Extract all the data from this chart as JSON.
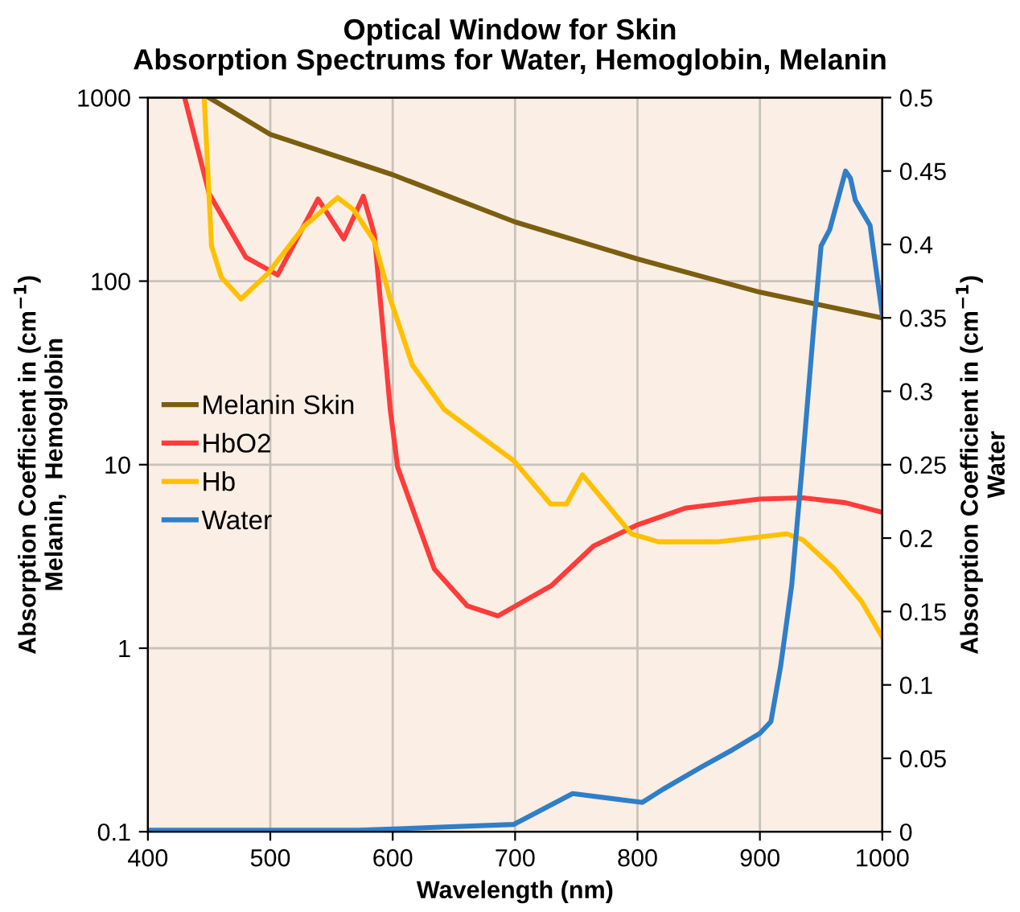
{
  "chart_data": {
    "type": "line",
    "title": "Optical Window for Skin",
    "subtitle": "Absorption Spectrums for Water, Hemoglobin, Melanin",
    "xlabel": "Wavelength (nm)",
    "ylabel": "Absorption Coefficient in (cm$^{−1}$)\nMelanin,  Hemoglobin",
    "y2label": "Absorption Coefficient in (cm$^{−1}$)\nWater",
    "log": "y",
    "grid": true,
    "legend": "center left",
    "xlim": [
      400,
      1000
    ],
    "xticks": [
      400,
      500,
      600,
      700,
      800,
      900,
      1000
    ],
    "ylim": [
      0.1,
      1000
    ],
    "yticks": [
      {
        "value": 0.1,
        "label": "0.1"
      },
      1,
      10,
      100,
      1000
    ],
    "y2lim": [
      0,
      0.5
    ],
    "y2ticks": [
      {
        "value": 0,
        "label": "0"
      },
      0.05,
      0.1,
      0.15,
      0.2,
      0.25,
      0.3,
      0.35,
      0.4,
      0.45,
      0.5
    ],
    "series": [
      {
        "name": "Melanin Skin",
        "color": "#7b5e10",
        "x": [
          450,
          500,
          600,
          700,
          800,
          900,
          1000
        ],
        "values": [
          1000,
          630,
          380,
          210,
          132,
          87,
          63
        ]
      },
      {
        "name": "HbO2",
        "color": "#ff3b3b",
        "x": [
          430,
          450,
          480,
          506,
          539,
          560,
          576,
          585,
          598,
          604,
          634,
          661,
          686,
          730,
          764,
          800,
          839,
          900,
          935,
          970,
          1000
        ],
        "values": [
          1000,
          300,
          135,
          108,
          280,
          170,
          290,
          180,
          20,
          9.7,
          2.7,
          1.7,
          1.5,
          2.2,
          3.6,
          4.7,
          5.8,
          6.5,
          6.6,
          6.2,
          5.5
        ]
      },
      {
        "name": "Hb",
        "color": "#ffc000",
        "x": [
          446,
          452,
          460,
          476,
          498,
          528,
          555,
          568,
          585,
          598,
          616,
          642,
          699,
          729,
          742,
          755,
          795,
          817,
          865,
          922,
          935,
          961,
          983,
          1000
        ],
        "values": [
          1000,
          155,
          105,
          80,
          110,
          200,
          285,
          245,
          165,
          80,
          35,
          20,
          10.5,
          6.1,
          6.1,
          8.8,
          4.2,
          3.8,
          3.8,
          4.2,
          3.9,
          2.7,
          1.8,
          1.15
        ]
      },
      {
        "name": "Water",
        "color": "#2f7ec8",
        "axis": "y2",
        "x": [
          400,
          572,
          699,
          747,
          804,
          821,
          852,
          878,
          900,
          909,
          917,
          926,
          935,
          944,
          950,
          957,
          970,
          974,
          978,
          990,
          1000
        ],
        "values": [
          0.001,
          0.001,
          0.005,
          0.026,
          0.02,
          0.029,
          0.044,
          0.056,
          0.067,
          0.075,
          0.113,
          0.168,
          0.253,
          0.344,
          0.399,
          0.41,
          0.45,
          0.445,
          0.43,
          0.413,
          0.352
        ]
      }
    ]
  }
}
